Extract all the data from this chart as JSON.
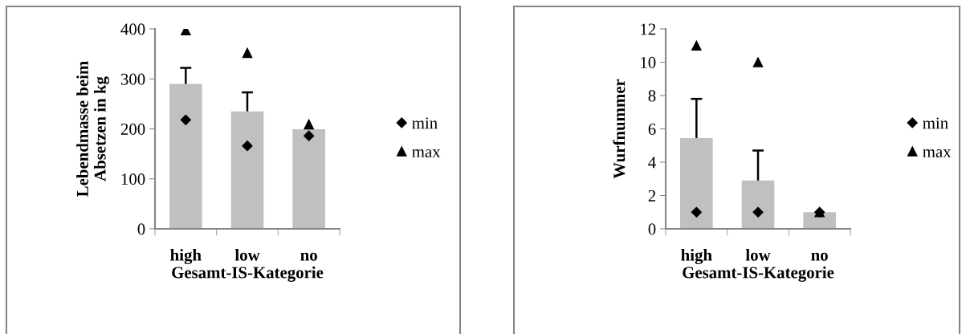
{
  "chart_data": [
    {
      "type": "bar",
      "xlabel": "Gesamt-IS-Kategorie",
      "ylabel": "Lebendmasse beim\nAbsetzen in kg",
      "categories": [
        "high",
        "low",
        "no"
      ],
      "ylim": [
        0,
        400
      ],
      "yticks": [
        0,
        100,
        200,
        300,
        400
      ],
      "grid": false,
      "legend": "right",
      "series": [
        {
          "color": "#c0c0c0",
          "values": [
            290,
            235,
            199
          ],
          "errors": [
            [
              290,
              322
            ],
            [
              235,
              273
            ],
            null
          ]
        },
        {
          "type": "scatter",
          "name": "min",
          "color": "#000000",
          "marker": "diamond",
          "values": [
            218,
            166,
            186
          ]
        },
        {
          "type": "scatter",
          "name": "max",
          "color": "#000000",
          "marker": "triangle",
          "values": [
            397,
            352,
            209
          ]
        }
      ]
    },
    {
      "type": "bar",
      "xlabel": "Gesamt-IS-Kategorie",
      "ylabel": "Wurfnummer",
      "categories": [
        "high",
        "low",
        "no"
      ],
      "ylim": [
        0,
        12
      ],
      "yticks": [
        0,
        2,
        4,
        6,
        8,
        10,
        12
      ],
      "grid": false,
      "legend": "right",
      "series": [
        {
          "color": "#c0c0c0",
          "values": [
            5.45,
            2.9,
            1.0
          ],
          "errors": [
            [
              5.45,
              7.8
            ],
            [
              2.9,
              4.7
            ],
            null
          ]
        },
        {
          "type": "scatter",
          "name": "min",
          "color": "#000000",
          "marker": "diamond",
          "values": [
            1,
            1,
            1
          ]
        },
        {
          "type": "scatter",
          "name": "max",
          "color": "#000000",
          "marker": "triangle",
          "values": [
            11,
            10,
            1
          ]
        }
      ]
    }
  ]
}
